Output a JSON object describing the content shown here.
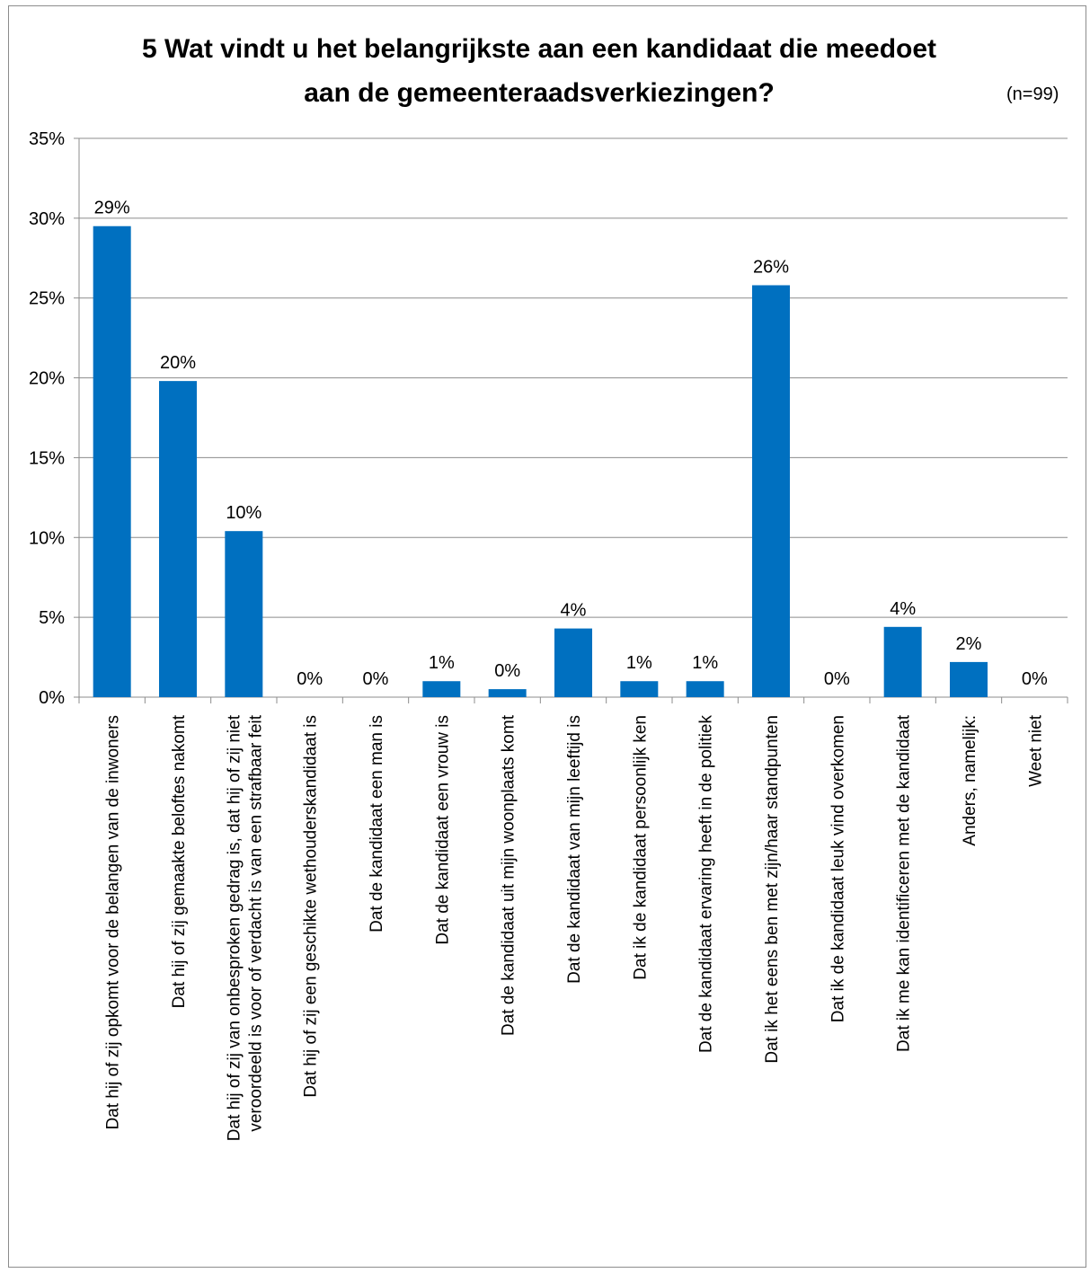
{
  "chart_data": {
    "type": "bar",
    "title": "5 Wat vindt u het belangrijkste aan een kandidaat die meedoet aan de gemeenteraadsverkiezingen?",
    "note": "(n=99)",
    "y_ticks": [
      "0%",
      "5%",
      "10%",
      "15%",
      "20%",
      "25%",
      "30%",
      "35%"
    ],
    "ylim": [
      0,
      35
    ],
    "grid": true,
    "bar_color": "#0070c0",
    "categories": [
      [
        "Dat hij of zij opkomt voor de belangen van de inwoners"
      ],
      [
        "Dat hij of zij gemaakte beloftes nakomt"
      ],
      [
        "Dat hij of zij van onbesproken gedrag is, dat hij of zij niet",
        "veroordeeld is voor of verdacht is van een strafbaar feit"
      ],
      [
        "Dat hij of zij een geschikte wethouderskandidaat is"
      ],
      [
        "Dat de kandidaat een man is"
      ],
      [
        "Dat de kandidaat een vrouw is"
      ],
      [
        "Dat de kandidaat uit mijn woonplaats komt"
      ],
      [
        "Dat de kandidaat van mijn leeftijd is"
      ],
      [
        "Dat ik de kandidaat persoonlijk ken"
      ],
      [
        "Dat de kandidaat ervaring heeft in de politiek"
      ],
      [
        "Dat ik het eens ben met zijn/haar standpunten"
      ],
      [
        "Dat ik de kandidaat leuk vind overkomen"
      ],
      [
        "Dat ik me kan identificeren met de kandidaat"
      ],
      [
        "Anders, namelijk:"
      ],
      [
        "Weet niet"
      ]
    ],
    "values": [
      29.5,
      19.8,
      10.4,
      0,
      0,
      1.0,
      0.5,
      4.3,
      1.0,
      1.0,
      25.8,
      0,
      4.4,
      2.2,
      0
    ],
    "data_labels": [
      "29%",
      "20%",
      "10%",
      "0%",
      "0%",
      "1%",
      "0%",
      "4%",
      "1%",
      "1%",
      "26%",
      "0%",
      "4%",
      "2%",
      "0%"
    ]
  }
}
